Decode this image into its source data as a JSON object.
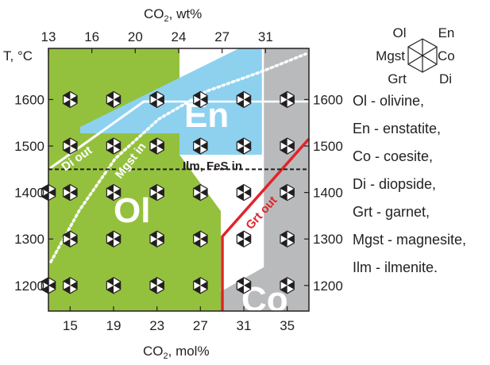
{
  "axes": {
    "top_title": "CO",
    "top_title_sub": "2",
    "top_title_unit": ", wt%",
    "top_ticks": [
      "13",
      "16",
      "20",
      "24",
      "27",
      "31"
    ],
    "bottom_title": "CO",
    "bottom_title_sub": "2",
    "bottom_title_unit": ", mol%",
    "bottom_ticks": [
      "15",
      "19",
      "23",
      "27",
      "31",
      "35"
    ],
    "left_title": "T, °C",
    "left_ticks": [
      "1600",
      "1500",
      "1400",
      "1300",
      "1200"
    ],
    "right_ticks": [
      "1600",
      "1500",
      "1400",
      "1300",
      "1200"
    ],
    "temperature_range_c": [
      1145,
      1710
    ],
    "co2_mol_range": [
      13,
      37
    ]
  },
  "fields": {
    "olivine": "Ol",
    "enstatite": "En",
    "coesite": "Co"
  },
  "boundaries": {
    "di_out": "Di out",
    "mgst_in": "Mgst in",
    "grt_out": "Grt out",
    "ilm_fes_in": "Ilm, FeS in",
    "ilm_fes_in_temperature_c": 1450
  },
  "colors": {
    "olivine_field": "#94c13d",
    "enstatite_field": "#8dd1ef",
    "coesite_field": "#b9babc",
    "white_field": "#ffffff",
    "garnet_boundary": "#e2232a",
    "boundary_white": "#ffffff",
    "symbol_black": "#231f20"
  },
  "symbol_key": {
    "top_left": "Ol",
    "top_right": "En",
    "left": "Mgst",
    "right": "Co",
    "bottom_left": "Grt",
    "bottom_right": "Di"
  },
  "legend": [
    "Ol - olivine,",
    "En - enstatite,",
    "Co - coesite,",
    "Di - diopside,",
    "Grt - garnet,",
    "Mgst - magnesite,",
    "Ilm - ilmenite."
  ],
  "experiments": {
    "co2_mol_columns": [
      15,
      19,
      23,
      27,
      31,
      35
    ],
    "temperature_rows_c": [
      1600,
      1500,
      1400,
      1300,
      1200
    ],
    "extra_points": [
      {
        "co2_mol": 13,
        "temperature_c": 1400
      },
      {
        "co2_mol": 13,
        "temperature_c": 1200
      }
    ],
    "symbol": "hexagon-sectors"
  }
}
